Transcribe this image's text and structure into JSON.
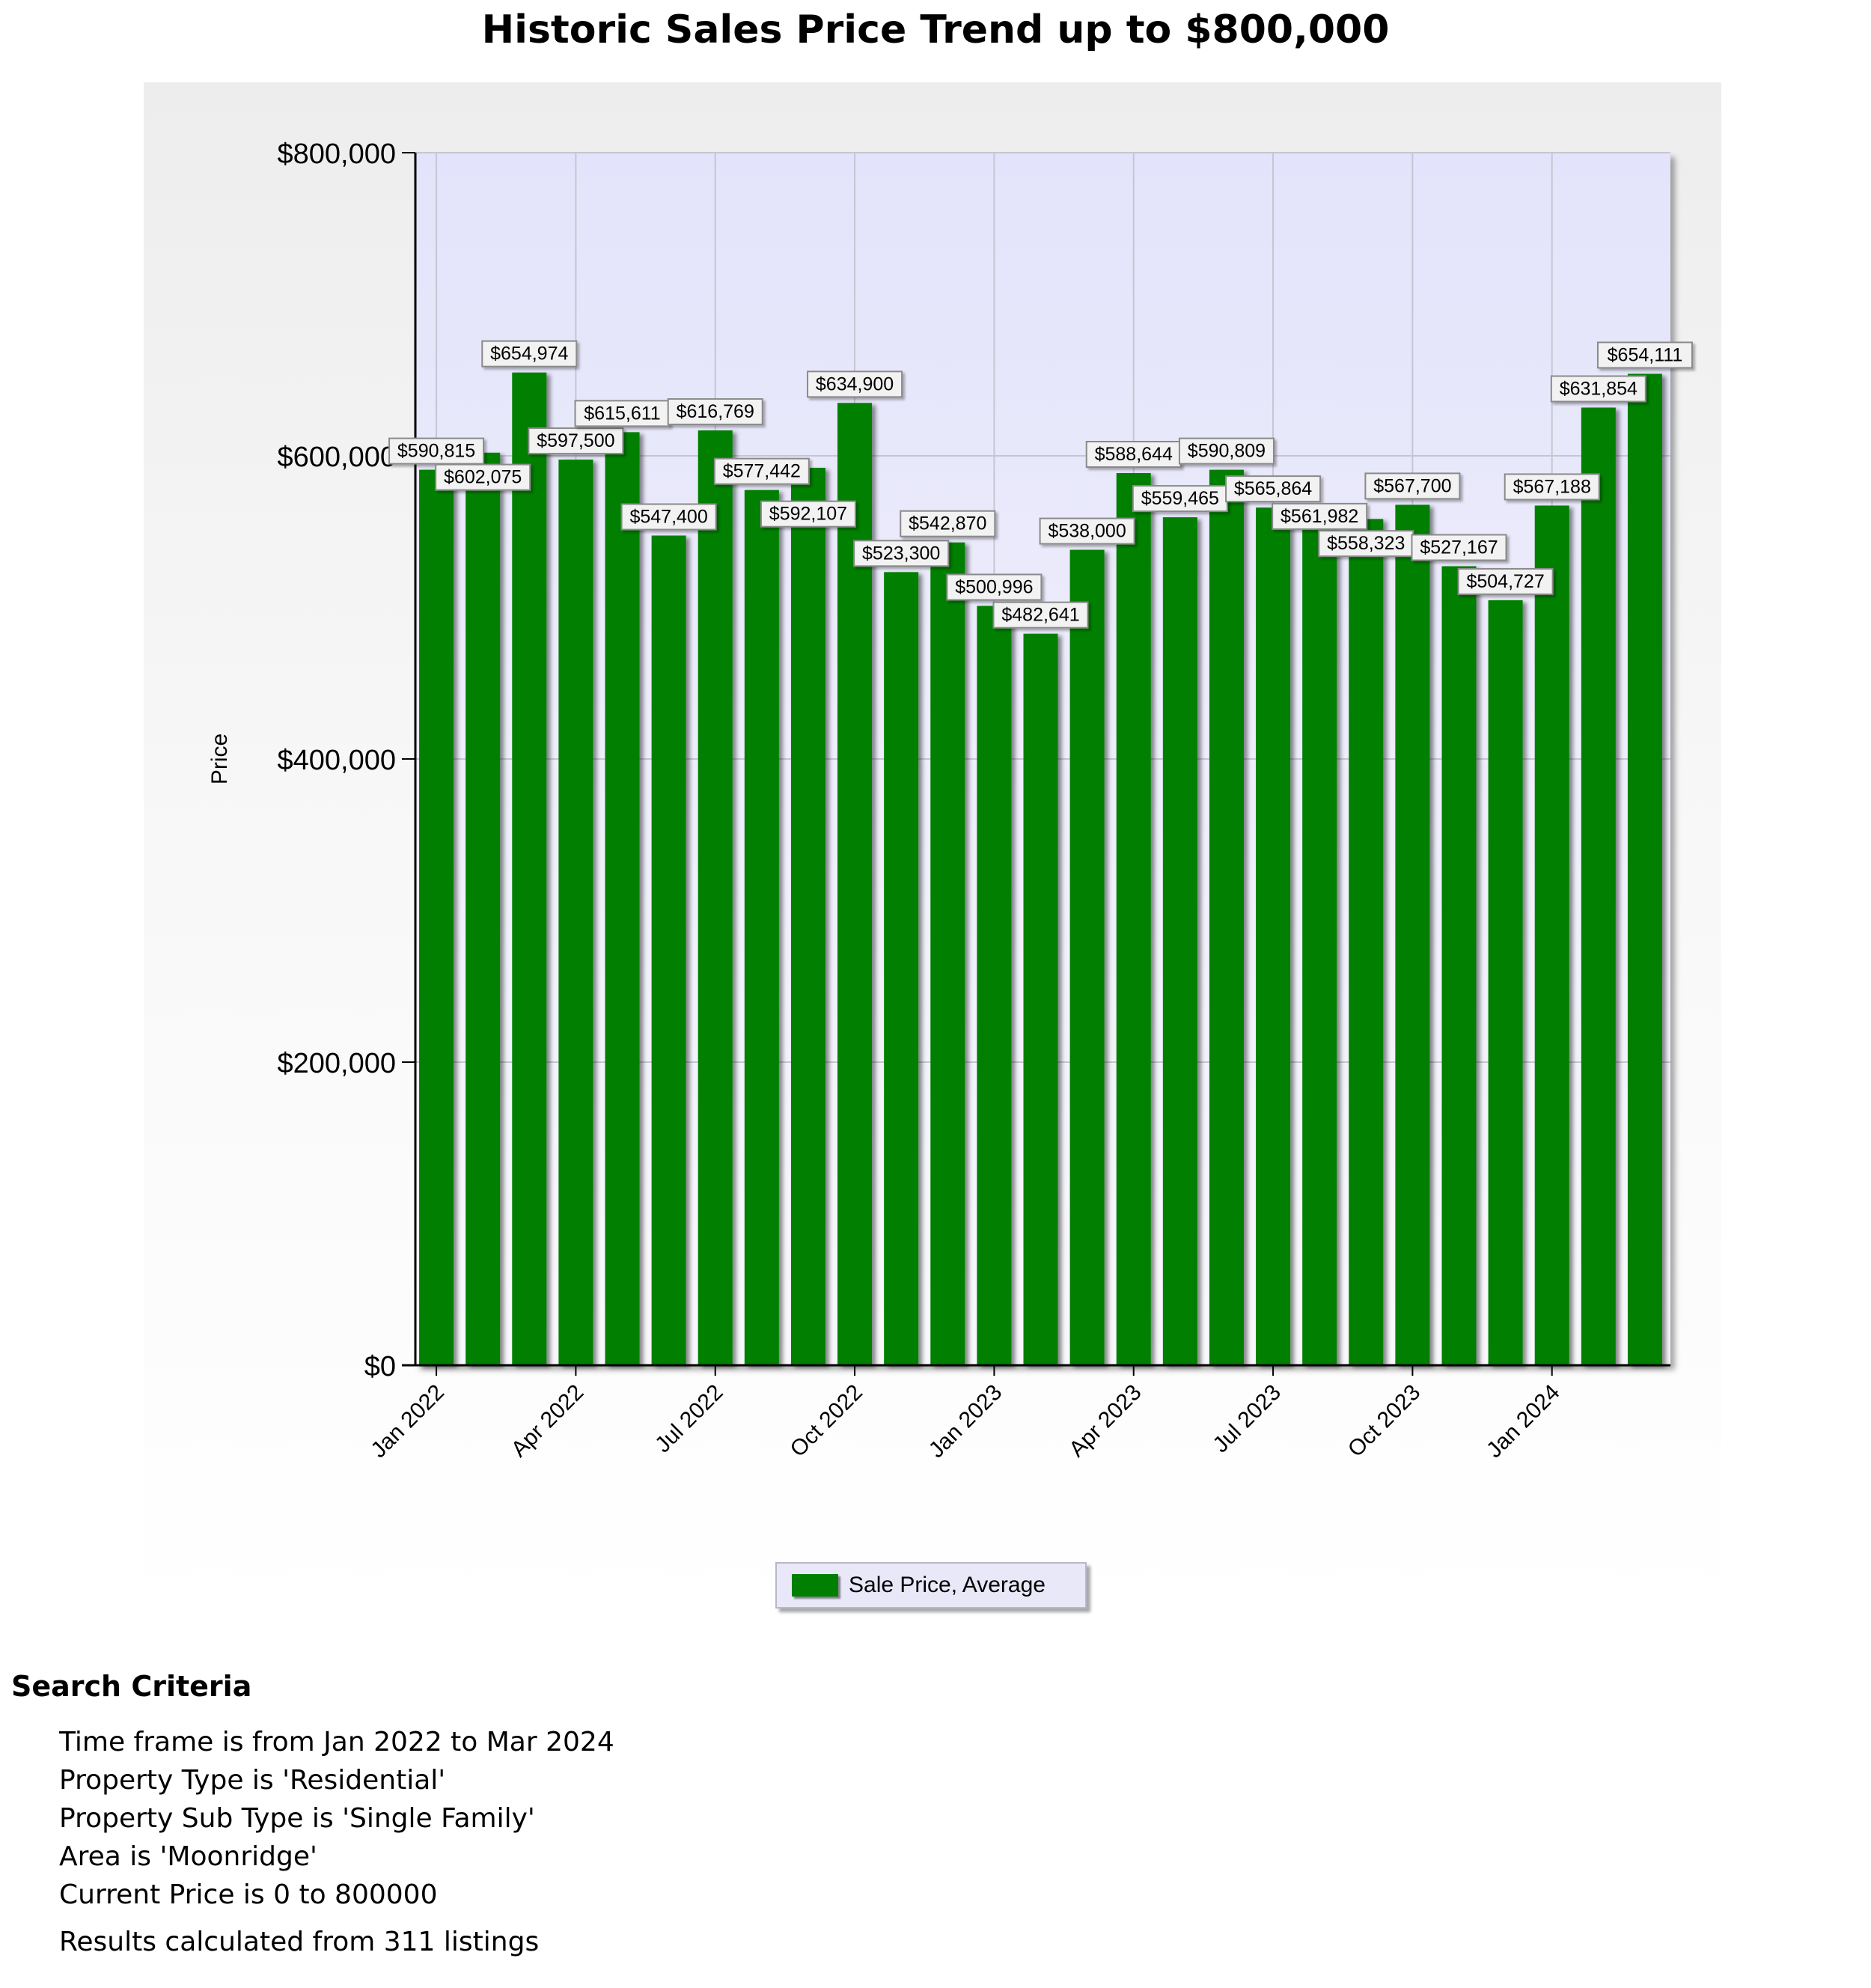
{
  "chart_data": {
    "type": "bar",
    "title": "Historic Sales Price Trend up to $800,000",
    "ylabel": "Price",
    "xlabel": "",
    "ylim": [
      0,
      800000
    ],
    "y_ticks": [
      "$0",
      "$200,000",
      "$400,000",
      "$600,000",
      "$800,000"
    ],
    "x_tick_labels": [
      "Jan 2022",
      "Apr 2022",
      "Jul 2022",
      "Oct 2022",
      "Jan 2023",
      "Apr 2023",
      "Jul 2023",
      "Oct 2023",
      "Jan 2024"
    ],
    "categories": [
      "Jan 2022",
      "Feb 2022",
      "Mar 2022",
      "Apr 2022",
      "May 2022",
      "Jun 2022",
      "Jul 2022",
      "Aug 2022",
      "Sep 2022",
      "Oct 2022",
      "Nov 2022",
      "Dec 2022",
      "Jan 2023",
      "Feb 2023",
      "Mar 2023",
      "Apr 2023",
      "May 2023",
      "Jun 2023",
      "Jul 2023",
      "Aug 2023",
      "Sep 2023",
      "Oct 2023",
      "Nov 2023",
      "Dec 2023",
      "Jan 2024",
      "Feb 2024",
      "Mar 2024"
    ],
    "series": [
      {
        "name": "Sale Price, Average",
        "color": "#007f00",
        "values": [
          590815,
          602075,
          654974,
          597500,
          615611,
          547400,
          616769,
          577442,
          592107,
          634900,
          523300,
          542870,
          500996,
          482641,
          538000,
          588644,
          559465,
          590809,
          565864,
          561982,
          558323,
          567700,
          527167,
          504727,
          567188,
          631854,
          654111
        ],
        "data_labels": [
          "$590,815",
          "$602,075",
          "$654,974",
          "$597,500",
          "$615,611",
          "$547,400",
          "$616,769",
          "$577,442",
          "$592,107",
          "$634,900",
          "$523,300",
          "$542,870",
          "$500,996",
          "$482,641",
          "$538,000",
          "$588,644",
          "$559,465",
          "$590,809",
          "$565,864",
          "$561,982",
          "$558,323",
          "$567,700",
          "$527,167",
          "$504,727",
          "$567,188",
          "$631,854",
          "$654,111"
        ]
      }
    ],
    "grid": true,
    "legend": "bottom-center",
    "plot_background": "#e6e6fa"
  },
  "legend": {
    "label": "Sale Price, Average"
  },
  "criteria": {
    "heading": "Search Criteria",
    "items": [
      "Time frame is from Jan 2022 to Mar 2024",
      "Property Type is 'Residential'",
      "Property Sub Type is 'Single Family'",
      "Area is 'Moonridge'",
      "Current Price is 0 to 800000"
    ],
    "results": "Results calculated from 311 listings"
  }
}
